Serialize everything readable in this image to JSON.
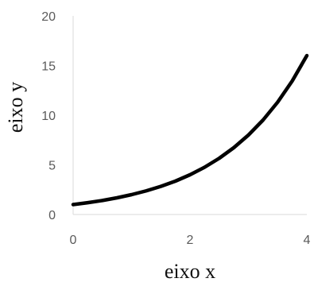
{
  "chart_data": {
    "type": "line",
    "title": "",
    "xlabel": "eixo x",
    "ylabel": "eixo y",
    "xlim": [
      0,
      4
    ],
    "ylim": [
      0,
      20
    ],
    "x_ticks": [
      "0",
      "2",
      "4"
    ],
    "y_ticks": [
      "0",
      "5",
      "10",
      "15",
      "20"
    ],
    "grid": false,
    "legend": "none",
    "series": [
      {
        "line_color": "#000000",
        "x": [
          0,
          0.25,
          0.5,
          0.75,
          1,
          1.25,
          1.5,
          1.75,
          2,
          2.25,
          2.5,
          2.75,
          3,
          3.25,
          3.5,
          3.75,
          4
        ],
        "y": [
          1,
          1.19,
          1.41,
          1.68,
          2,
          2.38,
          2.83,
          3.36,
          4,
          4.76,
          5.66,
          6.73,
          8,
          9.51,
          11.31,
          13.45,
          16
        ]
      }
    ]
  }
}
